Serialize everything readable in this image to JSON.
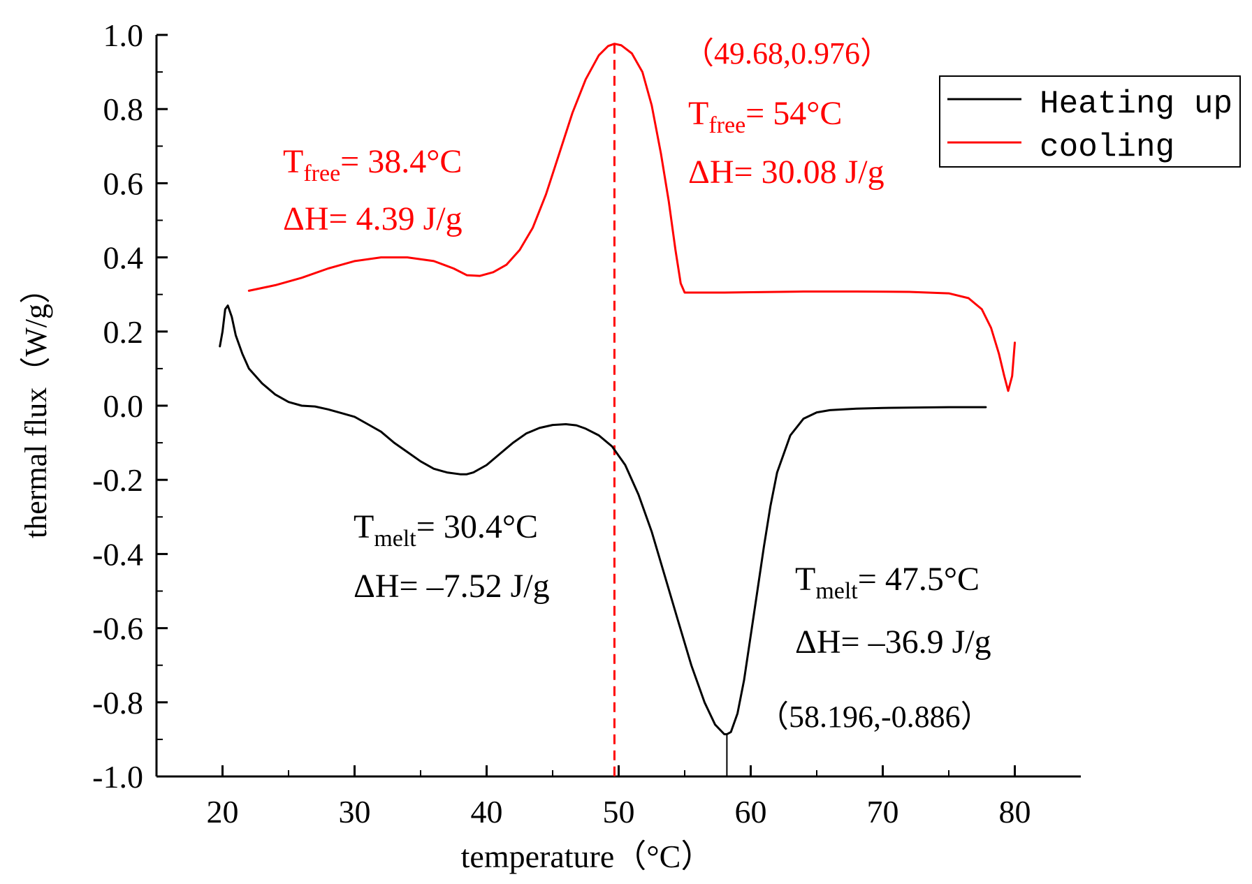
{
  "chart_data": {
    "type": "line",
    "title": "",
    "xlabel": "temperature（°C）",
    "ylabel": "thermal flux（W/g）",
    "xlim": [
      15,
      85
    ],
    "ylim": [
      -1.0,
      1.0
    ],
    "grid": false,
    "legend_position": "top-right",
    "x_ticks": [
      20,
      30,
      40,
      50,
      60,
      70,
      80
    ],
    "x_tick_labels": [
      "20",
      "30",
      "40",
      "50",
      "60",
      "70",
      "80"
    ],
    "y_ticks": [
      1.0,
      0.8,
      0.6,
      0.4,
      0.2,
      0.0,
      -0.2,
      -0.4,
      -0.6,
      -0.8,
      -1.0
    ],
    "y_tick_labels": [
      "1.0",
      "0.8",
      "0.6",
      "0.4",
      "0.2",
      "0.0",
      "-0.2",
      "-0.4",
      "-0.6",
      "-0.8",
      "-1.0"
    ],
    "series": [
      {
        "name": "Heating up",
        "color": "#000000",
        "x": [
          19.8,
          20.0,
          20.2,
          20.4,
          20.7,
          21.0,
          21.5,
          22.0,
          23.0,
          24.0,
          25.0,
          26.0,
          27.0,
          28.0,
          29.0,
          30.0,
          31.0,
          32.0,
          33.0,
          34.0,
          35.0,
          36.0,
          37.0,
          38.0,
          38.5,
          39.0,
          40.0,
          41.0,
          42.0,
          43.0,
          44.0,
          45.0,
          46.0,
          46.8,
          47.5,
          48.5,
          49.5,
          50.5,
          51.5,
          52.5,
          53.5,
          54.5,
          55.5,
          56.5,
          57.3,
          58.0,
          58.2,
          58.5,
          59.0,
          59.5,
          60.0,
          60.5,
          61.0,
          61.5,
          62.0,
          63.0,
          64.0,
          65.0,
          66.0,
          68.0,
          70.0,
          72.0,
          75.0,
          77.8
        ],
        "y": [
          0.16,
          0.2,
          0.26,
          0.27,
          0.24,
          0.19,
          0.14,
          0.1,
          0.06,
          0.03,
          0.01,
          0.0,
          -0.002,
          -0.01,
          -0.02,
          -0.03,
          -0.05,
          -0.07,
          -0.1,
          -0.125,
          -0.15,
          -0.17,
          -0.18,
          -0.185,
          -0.185,
          -0.18,
          -0.16,
          -0.13,
          -0.1,
          -0.075,
          -0.06,
          -0.052,
          -0.05,
          -0.053,
          -0.062,
          -0.08,
          -0.11,
          -0.16,
          -0.24,
          -0.34,
          -0.46,
          -0.58,
          -0.7,
          -0.8,
          -0.86,
          -0.886,
          -0.886,
          -0.88,
          -0.83,
          -0.74,
          -0.62,
          -0.5,
          -0.38,
          -0.27,
          -0.18,
          -0.08,
          -0.035,
          -0.018,
          -0.012,
          -0.008,
          -0.006,
          -0.005,
          -0.004,
          -0.004
        ]
      },
      {
        "name": "cooling",
        "color": "#ff0000",
        "x": [
          22.0,
          24.0,
          26.0,
          28.0,
          30.0,
          32.0,
          34.0,
          36.0,
          37.5,
          38.5,
          39.5,
          40.5,
          41.5,
          42.5,
          43.5,
          44.5,
          45.5,
          46.5,
          47.5,
          48.5,
          49.2,
          49.68,
          50.2,
          51.0,
          51.8,
          52.5,
          53.2,
          53.8,
          54.3,
          54.7,
          55.0,
          56.0,
          58.0,
          60.0,
          64.0,
          68.0,
          72.0,
          75.0,
          76.5,
          77.5,
          78.2,
          78.8,
          79.2,
          79.5,
          79.8,
          80.0
        ],
        "y": [
          0.31,
          0.325,
          0.345,
          0.37,
          0.39,
          0.4,
          0.4,
          0.39,
          0.37,
          0.352,
          0.35,
          0.36,
          0.38,
          0.42,
          0.48,
          0.57,
          0.68,
          0.79,
          0.88,
          0.945,
          0.97,
          0.976,
          0.972,
          0.95,
          0.9,
          0.81,
          0.68,
          0.55,
          0.42,
          0.33,
          0.305,
          0.305,
          0.305,
          0.306,
          0.308,
          0.308,
          0.307,
          0.303,
          0.29,
          0.26,
          0.21,
          0.14,
          0.08,
          0.04,
          0.08,
          0.17
        ]
      }
    ],
    "vertical_markers": [
      {
        "x": 49.68,
        "color": "#ff0000",
        "style": "dashed"
      },
      {
        "x": 58.196,
        "color": "#000000",
        "style": "short-tick"
      }
    ],
    "annotations": [
      {
        "id": "peak_cooling",
        "color": "#ff0000",
        "text": "（49.68,0.976）"
      },
      {
        "id": "free_high",
        "color": "#ff0000",
        "main": "T",
        "sub": "free",
        "rest": "= 54°C",
        "dh": "ΔH= 30.08 J/g"
      },
      {
        "id": "free_low",
        "color": "#ff0000",
        "main": "T",
        "sub": "free",
        "rest": "= 38.4°C",
        "dh": "ΔH= 4.39 J/g"
      },
      {
        "id": "melt_low",
        "color": "#000000",
        "main": "T",
        "sub": "melt",
        "rest": "= 30.4°C",
        "dh": "ΔH= –7.52 J/g"
      },
      {
        "id": "melt_high",
        "color": "#000000",
        "main": "T",
        "sub": "melt",
        "rest": "= 47.5°C",
        "dh": "ΔH= –36.9 J/g"
      },
      {
        "id": "peak_heating",
        "color": "#000000",
        "text": "（58.196,-0.886）"
      }
    ]
  }
}
